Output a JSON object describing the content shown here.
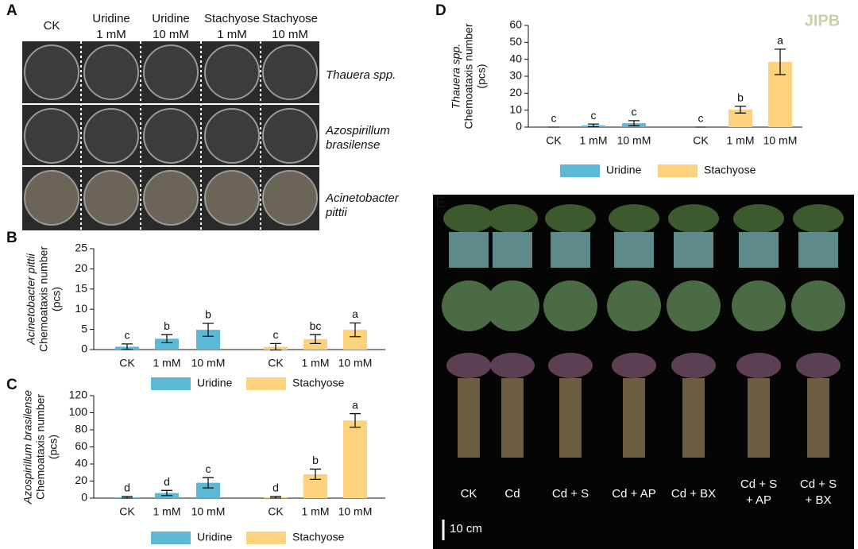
{
  "figure_labels": [
    "A",
    "B",
    "C",
    "D",
    "E"
  ],
  "logo": "JIPB",
  "panel_a": {
    "columns": [
      [
        "CK"
      ],
      [
        "Uridine",
        "1 mM"
      ],
      [
        "Uridine",
        "10 mM"
      ],
      [
        "Stachyose",
        "1 mM"
      ],
      [
        "Stachyose",
        "10 mM"
      ]
    ],
    "rows": [
      [
        "Thauera spp."
      ],
      [
        "Azospirillum",
        "brasilense"
      ],
      [
        "Acinetobacter",
        "pittii"
      ]
    ]
  },
  "panel_e": {
    "treatments": [
      [
        "CK"
      ],
      [
        "Cd"
      ],
      [
        "Cd + S"
      ],
      [
        "Cd + AP"
      ],
      [
        "Cd + BX"
      ],
      [
        "Cd + S",
        "+ AP"
      ],
      [
        "Cd + S",
        "+ BX"
      ]
    ],
    "scale": "10 cm"
  },
  "chart_data": [
    {
      "type": "bar",
      "y_label": [
        "Acinetobacter pittii",
        "Chemoataxis number",
        "(pcs)"
      ],
      "categories": [
        "CK",
        "1 mM",
        "10 mM"
      ],
      "ylim": [
        0,
        25
      ],
      "yticks": [
        0,
        5,
        10,
        15,
        20,
        25
      ],
      "series": [
        {
          "name": "Uridine",
          "color": "#5cb9d5",
          "values": [
            0.7,
            2.7,
            4.9
          ],
          "errors": [
            0.7,
            1.0,
            1.6
          ],
          "letters": [
            "c",
            "b",
            "b"
          ]
        },
        {
          "name": "Stachyose",
          "color": "#fcd27c",
          "values": [
            0.7,
            2.6,
            4.9
          ],
          "errors": [
            0.8,
            1.1,
            1.7
          ],
          "letters": [
            "c",
            "bc",
            "a"
          ]
        }
      ]
    },
    {
      "type": "bar",
      "y_label": [
        "Azospirillum brasilense",
        "Chemoataxis number",
        "(pcs)"
      ],
      "categories": [
        "CK",
        "1 mM",
        "10 mM"
      ],
      "ylim": [
        0,
        120
      ],
      "yticks": [
        0,
        20,
        40,
        60,
        80,
        100,
        120
      ],
      "series": [
        {
          "name": "Uridine",
          "color": "#5cb9d5",
          "values": [
            1,
            6,
            18
          ],
          "errors": [
            1,
            3,
            6
          ],
          "letters": [
            "d",
            "d",
            "c"
          ]
        },
        {
          "name": "Stachyose",
          "color": "#fcd27c",
          "values": [
            1,
            28,
            91
          ],
          "errors": [
            1,
            6,
            8
          ],
          "letters": [
            "d",
            "b",
            "a"
          ]
        }
      ]
    },
    {
      "type": "bar",
      "y_label": [
        "Thauera spp.",
        "Chemoataxis number",
        "(pcs)"
      ],
      "categories": [
        "CK",
        "1 mM",
        "10 mM"
      ],
      "ylim": [
        0,
        60
      ],
      "yticks": [
        0,
        10,
        20,
        30,
        40,
        50,
        60
      ],
      "series": [
        {
          "name": "Uridine",
          "color": "#5cb9d5",
          "values": [
            0,
            1,
            2.3
          ],
          "errors": [
            0,
            0.8,
            1.5
          ],
          "letters": [
            "c",
            "c",
            "c"
          ]
        },
        {
          "name": "Stachyose",
          "color": "#fcd27c",
          "values": [
            0,
            10.3,
            38.5
          ],
          "errors": [
            0,
            2,
            7.5
          ],
          "letters": [
            "c",
            "b",
            "a"
          ]
        }
      ]
    }
  ]
}
